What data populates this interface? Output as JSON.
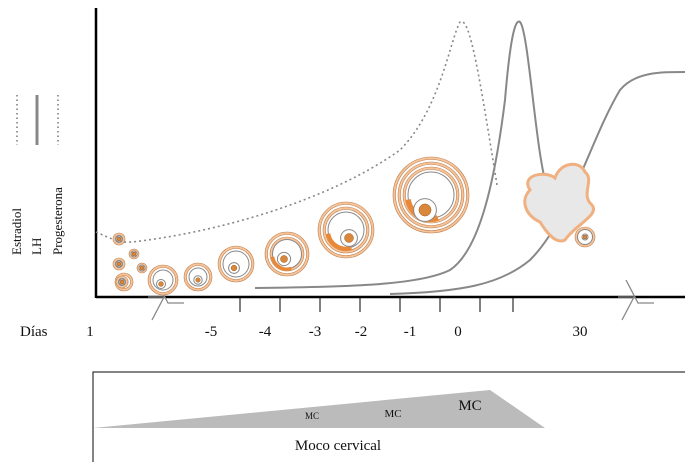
{
  "legend": [
    "Estradiol",
    "LH",
    "Progesterona"
  ],
  "axis": {
    "label": "Días",
    "ticks": [
      "1",
      "-5",
      "-4",
      "-3",
      "-2",
      "-1",
      "0",
      "30"
    ]
  },
  "mucus": {
    "labels": [
      "MC",
      "MC",
      "MC"
    ],
    "title": "Moco cervical"
  }
}
